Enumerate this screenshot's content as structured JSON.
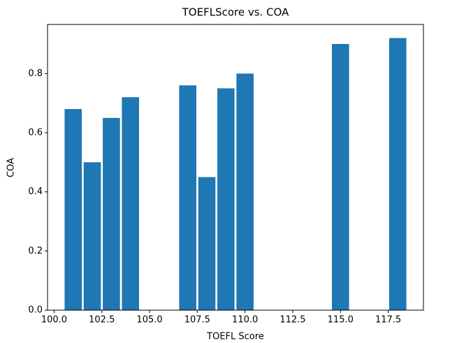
{
  "chart_data": {
    "type": "bar",
    "title": "TOEFLScore vs. COA",
    "x_label": "TOEFL Score",
    "y_label": "COA",
    "x": [
      101,
      102,
      103,
      104,
      107,
      108,
      109,
      110,
      115,
      118
    ],
    "values": [
      0.68,
      0.5,
      0.65,
      0.72,
      0.76,
      0.45,
      0.75,
      0.8,
      0.9,
      0.92
    ],
    "color": "#1f77b4",
    "xlim": [
      99.655,
      119.345
    ],
    "xticks": [
      {
        "value": 100,
        "label": "100.0"
      },
      {
        "value": 102.5,
        "label": "102.5"
      },
      {
        "value": 105,
        "label": "105.0"
      },
      {
        "value": 107.5,
        "label": "107.5"
      },
      {
        "value": 110,
        "label": "110.0"
      },
      {
        "value": 112.5,
        "label": "112.5"
      },
      {
        "value": 115,
        "label": "115.0"
      },
      {
        "value": 117.5,
        "label": "117.5"
      }
    ],
    "ylim": [
      0,
      0.966
    ],
    "yticks": [
      {
        "value": 0,
        "label": "0.0"
      },
      {
        "value": 0.2,
        "label": "0.2"
      },
      {
        "value": 0.4,
        "label": "0.4"
      },
      {
        "value": 0.6,
        "label": "0.6"
      },
      {
        "value": 0.8,
        "label": "0.8"
      }
    ],
    "grid": false
  }
}
